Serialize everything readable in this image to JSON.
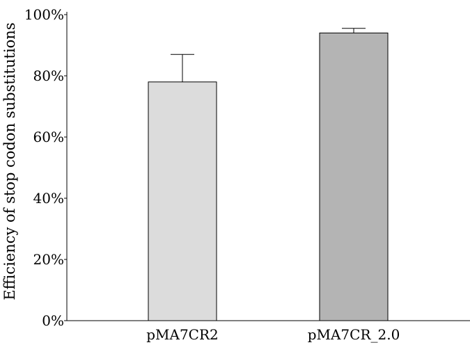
{
  "chart_data": {
    "type": "bar",
    "categories": [
      "pMA7CR2",
      "pMA7CR_2.0"
    ],
    "values": [
      78,
      94
    ],
    "error_upper": [
      87,
      95.5
    ],
    "ylabel": "Efficiency of stop codon substitutions",
    "ylim": [
      0,
      100
    ],
    "yticks": [
      "0%",
      "20%",
      "40%",
      "60%",
      "80%",
      "100%"
    ],
    "ytick_values": [
      0,
      20,
      40,
      60,
      80,
      100
    ],
    "grid": false,
    "colors": [
      "#dcdcdc",
      "#b4b4b4"
    ]
  }
}
